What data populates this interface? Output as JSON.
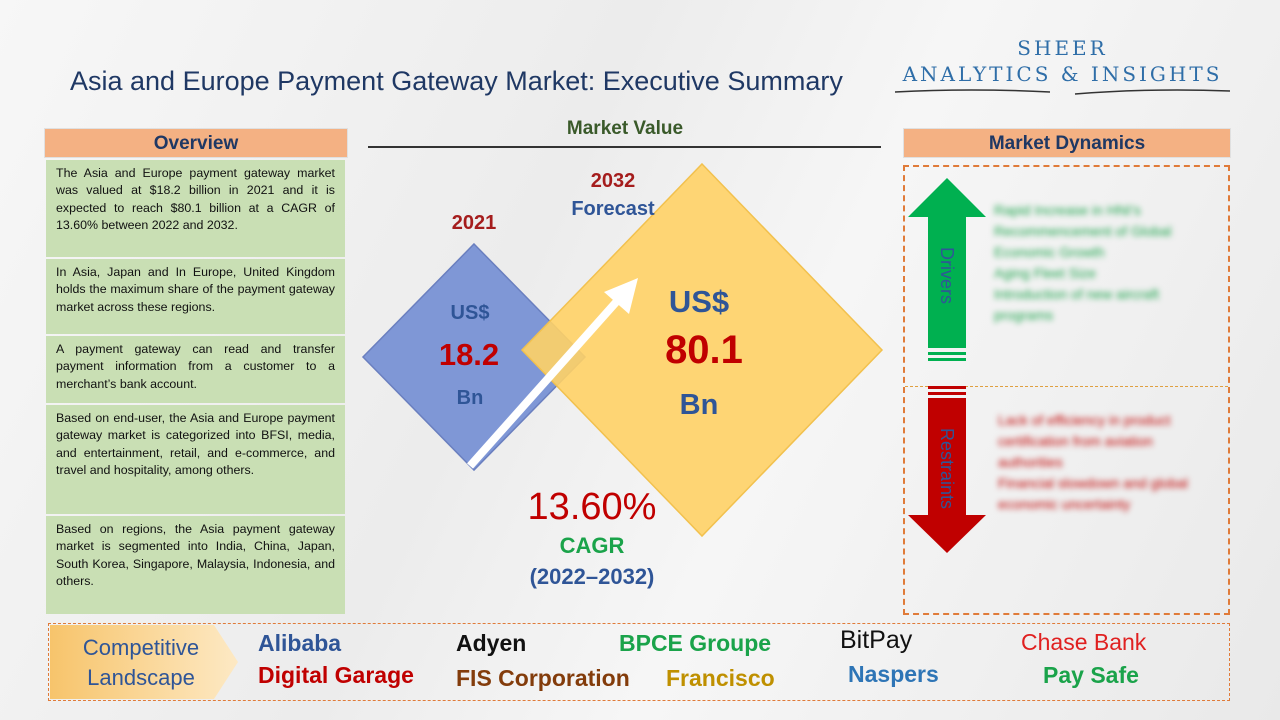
{
  "title": "Asia and Europe Payment Gateway Market: Executive Summary",
  "logo": {
    "line1": "SHEER",
    "line2": "ANALYTICS & INSIGHTS"
  },
  "overview": {
    "header": "Overview",
    "paragraphs": [
      "The Asia and Europe payment gateway market was valued at $18.2 billion in 2021 and it is expected to reach $80.1 billion at a CAGR of 13.60% between 2022 and 2032.",
      "In Asia, Japan and In Europe, United Kingdom holds the maximum share of the payment gateway market across these regions.",
      "A payment gateway can read and transfer payment information from a customer to a merchant’s bank account.",
      "Based on end-user, the Asia and Europe payment gateway market is categorized into BFSI, media, and entertainment, retail, and e-commerce, and travel and hospitality, among others.",
      "Based on regions, the Asia payment gateway market is segmented into India, China, Japan, South Korea, Singapore, Malaysia, Indonesia, and others."
    ]
  },
  "market_value": {
    "title": "Market Value",
    "year_2021": "2021",
    "value_2021": {
      "currency": "US$",
      "amount": "18.2",
      "unit": "Bn"
    },
    "year_2032": "2032",
    "forecast_label": "Forecast",
    "value_2032": {
      "currency": "US$",
      "amount": "80.1",
      "unit": "Bn"
    },
    "cagr_value": "13.60%",
    "cagr_label": "CAGR",
    "cagr_period": "(2022–2032)"
  },
  "market_dynamics": {
    "header": "Market Dynamics",
    "drivers_label": "Drivers",
    "drivers": [
      "Rapid Increase in HNI’s",
      "Recommencement of Global Economic Growth",
      "Aging Fleet Size",
      "Introduction of new aircraft programs"
    ],
    "restraints_label": "Restraints",
    "restraints": [
      "Lack of efficiency in product certification from aviation authorities",
      "Financial slowdown and global economic uncertainty"
    ]
  },
  "competitive": {
    "label_line1": "Competitive",
    "label_line2": "Landscape",
    "companies": [
      {
        "name": "Alibaba",
        "color": "#2f5597"
      },
      {
        "name": "Digital Garage",
        "color": "#c00000"
      },
      {
        "name": "Adyen",
        "color": "#111111"
      },
      {
        "name": "FIS Corporation",
        "color": "#833c0b"
      },
      {
        "name": "BPCE Groupe",
        "color": "#1aa34a"
      },
      {
        "name": "Francisco",
        "color": "#bf9000"
      },
      {
        "name": "BitPay",
        "color": "#111111"
      },
      {
        "name": "Naspers",
        "color": "#2e75b6"
      },
      {
        "name": "Chase Bank",
        "color": "#e02020"
      },
      {
        "name": "Pay Safe",
        "color": "#1aa34a"
      }
    ]
  },
  "colors": {
    "title": "#1f3864",
    "header_bg": "#f4b183",
    "overview_bg": "#c9dfb4",
    "driver_arrow": "#00b050",
    "restraint_arrow": "#c00000",
    "diamond_small": "#7f97d6",
    "diamond_large": "#ffd166"
  }
}
